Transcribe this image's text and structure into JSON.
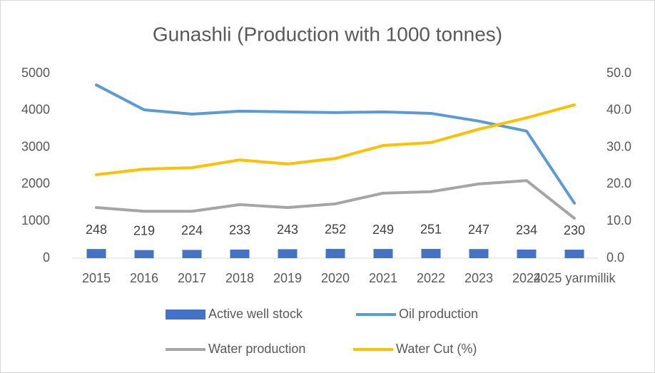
{
  "chart_data": {
    "type": "combo",
    "title": "Gunashli (Production with 1000 tonnes)",
    "categories": [
      "2015",
      "2016",
      "2017",
      "2018",
      "2019",
      "2020",
      "2021",
      "2022",
      "2023",
      "2024",
      "2025 yarımillik"
    ],
    "ylim": [
      0,
      5000
    ],
    "yticks": [
      0,
      1000,
      2000,
      3000,
      4000,
      5000
    ],
    "y2lim": [
      0,
      50
    ],
    "y2ticks": [
      {
        "value": 0,
        "label": "0.0"
      },
      {
        "value": 10,
        "label": "10.0"
      },
      {
        "value": 20,
        "label": "20.0"
      },
      {
        "value": 30,
        "label": "30.0"
      },
      {
        "value": 40,
        "label": "40.0"
      },
      {
        "value": 50,
        "label": "50.0"
      }
    ],
    "legend": "bottom",
    "series": [
      {
        "name": "Active well stock",
        "type": "bar",
        "color": "#4472c4",
        "data_labels": true,
        "values": [
          248,
          219,
          224,
          233,
          243,
          252,
          249,
          251,
          247,
          234,
          230
        ]
      },
      {
        "name": "Oil production",
        "type": "line",
        "color": "#5b9bd5",
        "values": [
          4690,
          4015,
          3900,
          3980,
          3960,
          3940,
          3960,
          3920,
          3710,
          3440,
          1490
        ]
      },
      {
        "name": "Water production",
        "type": "line",
        "color": "#a5a5a5",
        "values": [
          1370,
          1270,
          1270,
          1450,
          1370,
          1470,
          1760,
          1800,
          2010,
          2100,
          1080
        ]
      },
      {
        "name": "Water Cut (%)",
        "type": "line",
        "color": "#ffc000",
        "axis": "y2",
        "values": [
          22.6,
          24.1,
          24.5,
          26.6,
          25.5,
          27.0,
          30.5,
          31.3,
          34.9,
          38.0,
          41.5
        ]
      }
    ]
  }
}
